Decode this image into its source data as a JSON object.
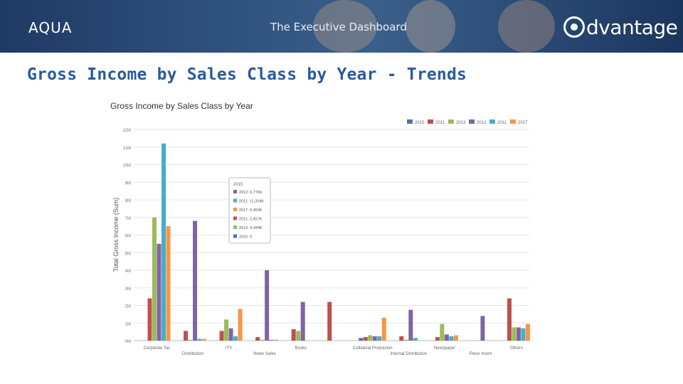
{
  "header": {
    "brand": "AQUA",
    "dashboard_title": "The Executive Dashboard",
    "logo_text": "dvantage"
  },
  "page": {
    "title": "Gross Income by Sales Class by Year - Trends"
  },
  "colors": {
    "banner": "#2e4f7c",
    "title": "#2a5b9c"
  },
  "chart_data": {
    "type": "bar",
    "title": "Gross Income by Sales Class by Year",
    "ylabel": "Total Gross Income (Sum)",
    "xlabel": "",
    "ylim": [
      0,
      12
    ],
    "yticks": [
      "0M",
      "1M",
      "2M",
      "3M",
      "4M",
      "5M",
      "6M",
      "7M",
      "8M",
      "9M",
      "10M",
      "11M",
      "12M"
    ],
    "grid": true,
    "legend_position": "top-right",
    "categories": [
      "Corporate Tax",
      "Distribution",
      "ITV",
      "News Sales",
      "Books",
      "",
      "Collateral Production",
      "Internal Distribution",
      "Newspaper",
      "Place Insert",
      "Others"
    ],
    "series": [
      {
        "name": "2015",
        "color": "#4a72b0",
        "values": [
          0,
          0,
          0,
          0,
          0,
          0,
          0.15,
          0,
          0,
          0,
          0
        ]
      },
      {
        "name": "2011",
        "color": "#c0504d",
        "values": [
          2.4,
          0.55,
          0.55,
          0.2,
          0.65,
          2.2,
          0.2,
          0.25,
          0.2,
          0,
          2.4
        ]
      },
      {
        "name": "2013",
        "color": "#9bbb59",
        "values": [
          7,
          0.05,
          1.2,
          0.05,
          0.55,
          0,
          0.3,
          0.05,
          0.95,
          0,
          0.75
        ]
      },
      {
        "name": "2012",
        "color": "#8064a2",
        "values": [
          5.5,
          6.8,
          0.7,
          4,
          2.2,
          0,
          0.25,
          1.75,
          0.35,
          1.4,
          0.75
        ]
      },
      {
        "name": "2011",
        "color": "#4bacc6",
        "values": [
          11.2,
          0.1,
          0.25,
          0.05,
          0,
          0,
          0.25,
          0.15,
          0.25,
          0,
          0.7
        ]
      },
      {
        "name": "2017",
        "color": "#f79646",
        "values": [
          6.5,
          0.1,
          1.8,
          0.05,
          0,
          0,
          1.3,
          0,
          0.3,
          0,
          0.95
        ]
      }
    ],
    "tooltip": {
      "header": "2015",
      "entries": [
        {
          "label": "2012: 6,776K",
          "color": "#8064a2"
        },
        {
          "label": "2011: 11,204K",
          "color": "#4bacc6"
        },
        {
          "label": "2017: 6,493K",
          "color": "#f79646"
        },
        {
          "label": "2011: 2,457K",
          "color": "#c0504d"
        },
        {
          "label": "2013: 6,944K",
          "color": "#9bbb59"
        },
        {
          "label": "2015: 0",
          "color": "#4a72b0"
        }
      ]
    }
  }
}
